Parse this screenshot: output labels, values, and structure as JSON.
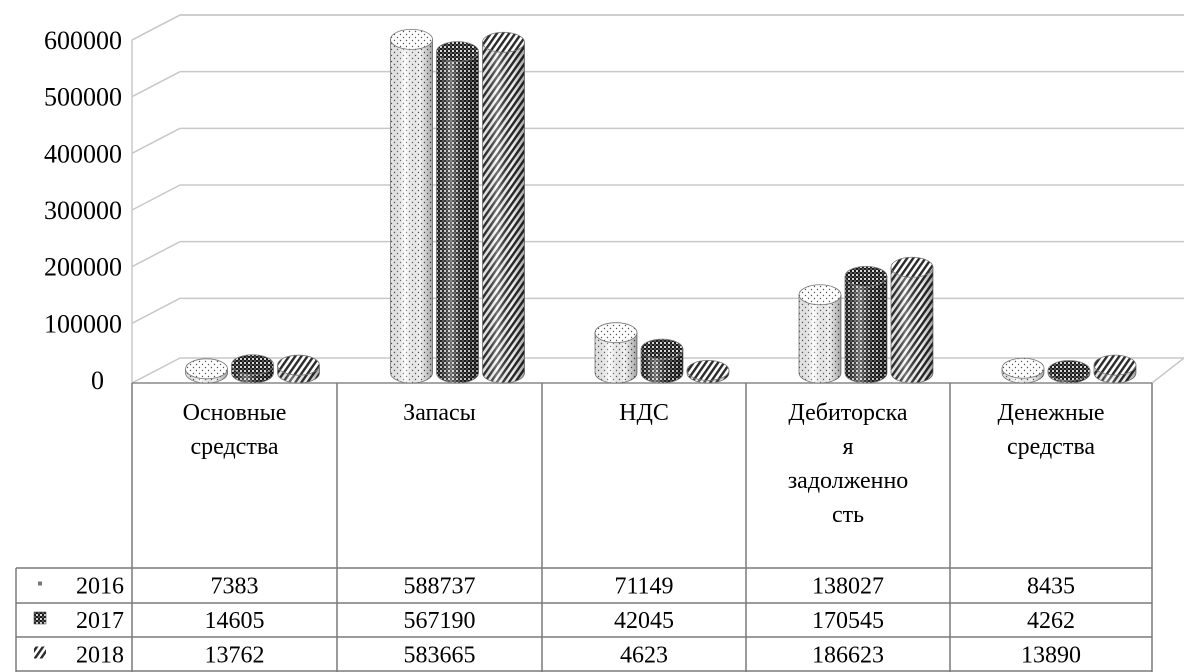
{
  "chart_data": {
    "type": "bar",
    "style": "3d-cylinder",
    "title": "",
    "xlabel": "",
    "ylabel": "",
    "ylim": [
      0,
      600000
    ],
    "yticks": [
      0,
      100000,
      200000,
      300000,
      400000,
      500000,
      600000
    ],
    "grid": true,
    "legend_placement": "data-table-left",
    "categories": [
      [
        "Основные",
        "средства"
      ],
      [
        "Запасы"
      ],
      [
        "НДС"
      ],
      [
        "Дебиторска",
        "я",
        "задолженно",
        "сть"
      ],
      [
        "Денежные",
        "средства"
      ]
    ],
    "series": [
      {
        "name": "2016",
        "pattern": "dots",
        "values": [
          7383,
          588737,
          71149,
          138027,
          8435
        ]
      },
      {
        "name": "2017",
        "pattern": "crosshatch",
        "values": [
          14605,
          567190,
          42045,
          170545,
          4262
        ]
      },
      {
        "name": "2018",
        "pattern": "diagonal",
        "values": [
          13762,
          583665,
          4623,
          186623,
          13890
        ]
      }
    ]
  }
}
